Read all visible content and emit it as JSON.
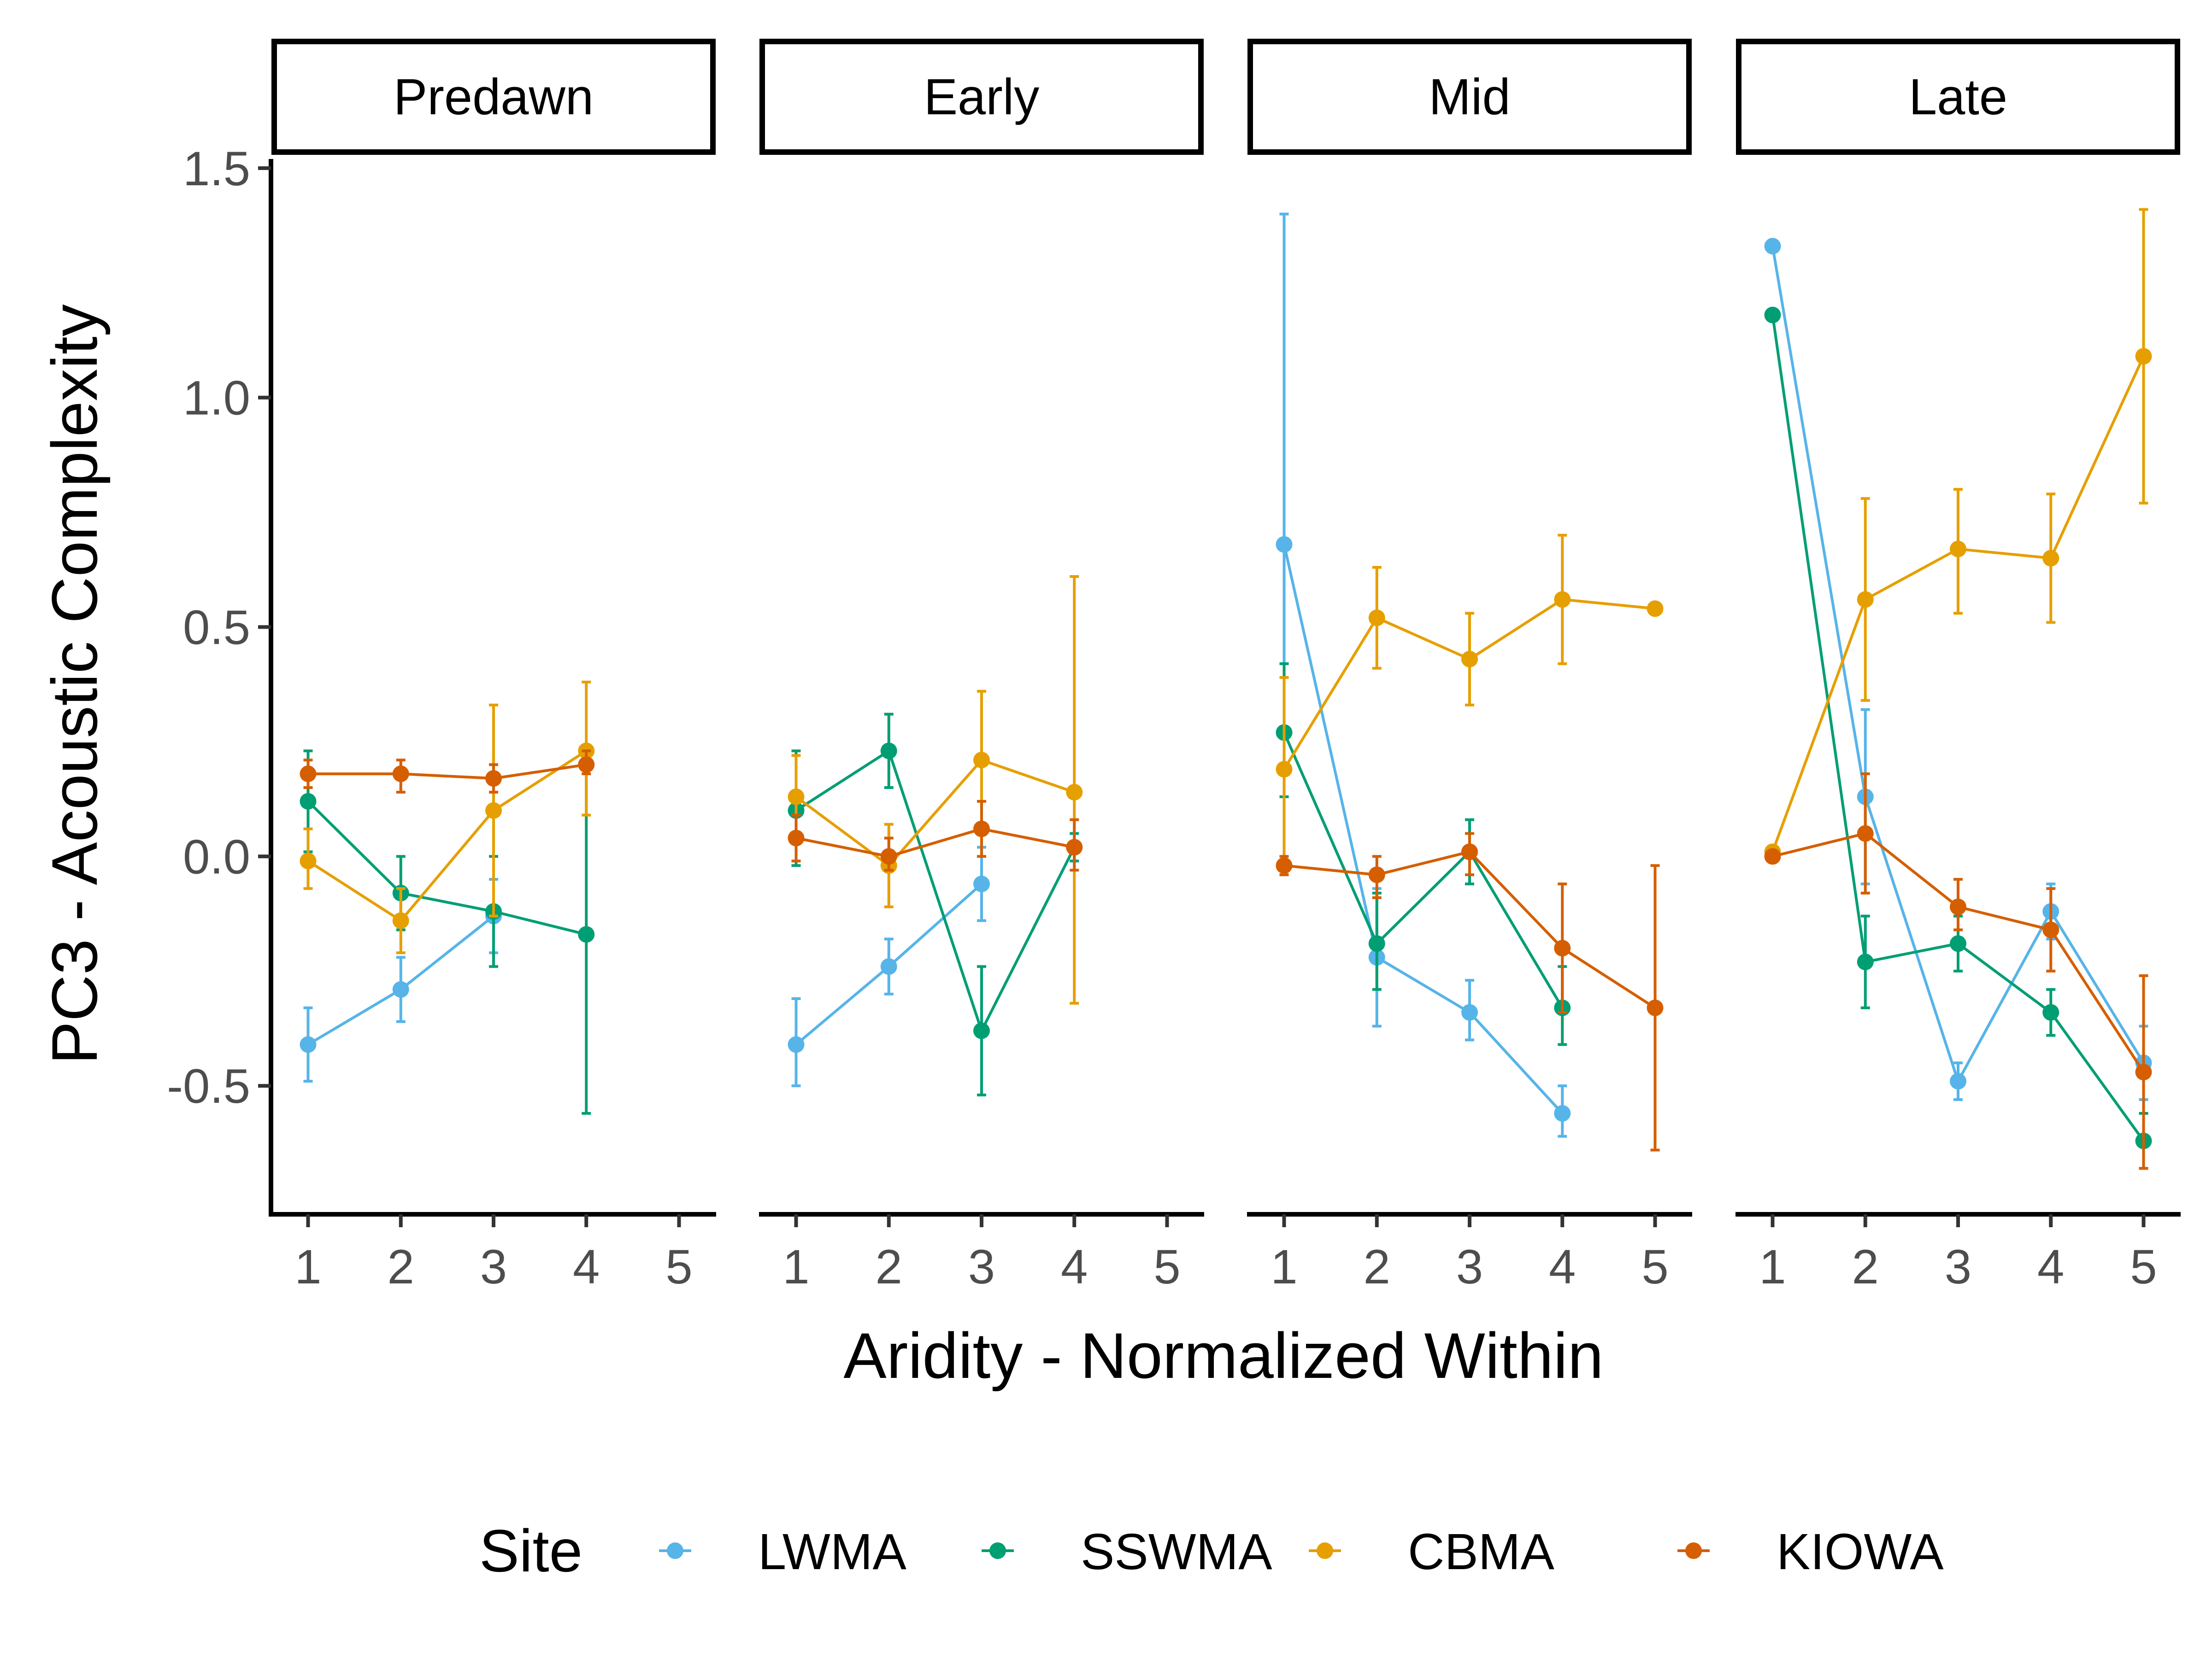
{
  "chart_data": {
    "type": "line",
    "xlabel": "Aridity - Normalized Within",
    "ylabel": "PC3 - Acoustic Complexity",
    "x_ticks": [
      1,
      2,
      3,
      4,
      5
    ],
    "y_ticks": [
      -0.5,
      0.0,
      0.5,
      1.0,
      1.5
    ],
    "y_tick_labels": [
      "-0.5",
      "0.0",
      "0.5",
      "1.0",
      "1.5"
    ],
    "ylim": [
      -0.78,
      1.52
    ],
    "xlim": [
      0.6,
      5.4
    ],
    "grid": false,
    "legend": {
      "title": "Site",
      "position": "bottom"
    },
    "panels": [
      "Predawn",
      "Early",
      "Mid",
      "Late"
    ],
    "series": [
      {
        "name": "LWMA",
        "color": "#56B4E9"
      },
      {
        "name": "SSWMA",
        "color": "#009E73"
      },
      {
        "name": "CBMA",
        "color": "#E69F00"
      },
      {
        "name": "KIOWA",
        "color": "#D55E00"
      }
    ],
    "data": {
      "Predawn": {
        "LWMA": [
          [
            1,
            -0.41,
            -0.49,
            -0.33
          ],
          [
            2,
            -0.29,
            -0.36,
            -0.22
          ],
          [
            3,
            -0.13,
            -0.21,
            -0.05
          ]
        ],
        "SSWMA": [
          [
            1,
            0.12,
            0.01,
            0.23
          ],
          [
            2,
            -0.08,
            -0.16,
            0.0
          ],
          [
            3,
            -0.12,
            -0.24,
            0.0
          ],
          [
            4,
            -0.17,
            -0.56,
            0.22
          ]
        ],
        "CBMA": [
          [
            1,
            -0.01,
            -0.07,
            0.06
          ],
          [
            2,
            -0.14,
            -0.21,
            -0.07
          ],
          [
            3,
            0.1,
            -0.13,
            0.33
          ],
          [
            4,
            0.23,
            0.09,
            0.38
          ]
        ],
        "KIOWA": [
          [
            1,
            0.18,
            0.15,
            0.21
          ],
          [
            2,
            0.18,
            0.14,
            0.21
          ],
          [
            3,
            0.17,
            0.14,
            0.2
          ],
          [
            4,
            0.2,
            0.18,
            0.23
          ]
        ]
      },
      "Early": {
        "LWMA": [
          [
            1,
            -0.41,
            -0.5,
            -0.31
          ],
          [
            2,
            -0.24,
            -0.3,
            -0.18
          ],
          [
            3,
            -0.06,
            -0.14,
            0.02
          ]
        ],
        "SSWMA": [
          [
            1,
            0.1,
            -0.02,
            0.23
          ],
          [
            2,
            0.23,
            0.15,
            0.31
          ],
          [
            3,
            -0.38,
            -0.52,
            -0.24
          ],
          [
            4,
            0.02,
            -0.01,
            0.05
          ]
        ],
        "CBMA": [
          [
            1,
            0.13,
            0.04,
            0.22
          ],
          [
            2,
            -0.02,
            -0.11,
            0.07
          ],
          [
            3,
            0.21,
            0.06,
            0.36
          ],
          [
            4,
            0.14,
            -0.32,
            0.61
          ]
        ],
        "KIOWA": [
          [
            1,
            0.04,
            -0.01,
            0.09
          ],
          [
            2,
            0.0,
            -0.03,
            0.04
          ],
          [
            3,
            0.06,
            0.0,
            0.12
          ],
          [
            4,
            0.02,
            -0.03,
            0.08
          ]
        ]
      },
      "Mid": {
        "LWMA": [
          [
            1,
            0.68,
            -0.04,
            1.4
          ],
          [
            2,
            -0.22,
            -0.37,
            -0.07
          ],
          [
            3,
            -0.34,
            -0.4,
            -0.27
          ],
          [
            4,
            -0.56,
            -0.61,
            -0.5
          ]
        ],
        "SSWMA": [
          [
            1,
            0.27,
            0.13,
            0.42
          ],
          [
            2,
            -0.19,
            -0.29,
            -0.08
          ],
          [
            3,
            0.01,
            -0.06,
            0.08
          ],
          [
            4,
            -0.33,
            -0.41,
            -0.24
          ]
        ],
        "CBMA": [
          [
            1,
            0.19,
            -0.01,
            0.39
          ],
          [
            2,
            0.52,
            0.41,
            0.63
          ],
          [
            3,
            0.43,
            0.33,
            0.53
          ],
          [
            4,
            0.56,
            0.42,
            0.7
          ],
          [
            5,
            0.54,
            0.54,
            0.54
          ]
        ],
        "KIOWA": [
          [
            1,
            -0.02,
            -0.04,
            0.0
          ],
          [
            2,
            -0.04,
            -0.09,
            0.0
          ],
          [
            3,
            0.01,
            -0.04,
            0.05
          ],
          [
            4,
            -0.2,
            -0.34,
            -0.06
          ],
          [
            5,
            -0.33,
            -0.64,
            -0.02
          ]
        ]
      },
      "Late": {
        "LWMA": [
          [
            1,
            1.33,
            1.33,
            1.33
          ],
          [
            2,
            0.13,
            -0.06,
            0.32
          ],
          [
            3,
            -0.49,
            -0.53,
            -0.45
          ],
          [
            4,
            -0.12,
            -0.18,
            -0.06
          ],
          [
            5,
            -0.45,
            -0.53,
            -0.37
          ]
        ],
        "SSWMA": [
          [
            1,
            1.18,
            1.18,
            1.18
          ],
          [
            2,
            -0.23,
            -0.33,
            -0.13
          ],
          [
            3,
            -0.19,
            -0.25,
            -0.13
          ],
          [
            4,
            -0.34,
            -0.39,
            -0.29
          ],
          [
            5,
            -0.62,
            -0.68,
            -0.56
          ]
        ],
        "CBMA": [
          [
            1,
            0.01,
            0.01,
            0.01
          ],
          [
            2,
            0.56,
            0.34,
            0.78
          ],
          [
            3,
            0.67,
            0.53,
            0.8
          ],
          [
            4,
            0.65,
            0.51,
            0.79
          ],
          [
            5,
            1.09,
            0.77,
            1.41
          ]
        ],
        "KIOWA": [
          [
            1,
            0.0,
            0.0,
            0.0
          ],
          [
            2,
            0.05,
            -0.08,
            0.18
          ],
          [
            3,
            -0.11,
            -0.16,
            -0.05
          ],
          [
            4,
            -0.16,
            -0.25,
            -0.07
          ],
          [
            5,
            -0.47,
            -0.68,
            -0.26
          ]
        ]
      }
    }
  }
}
